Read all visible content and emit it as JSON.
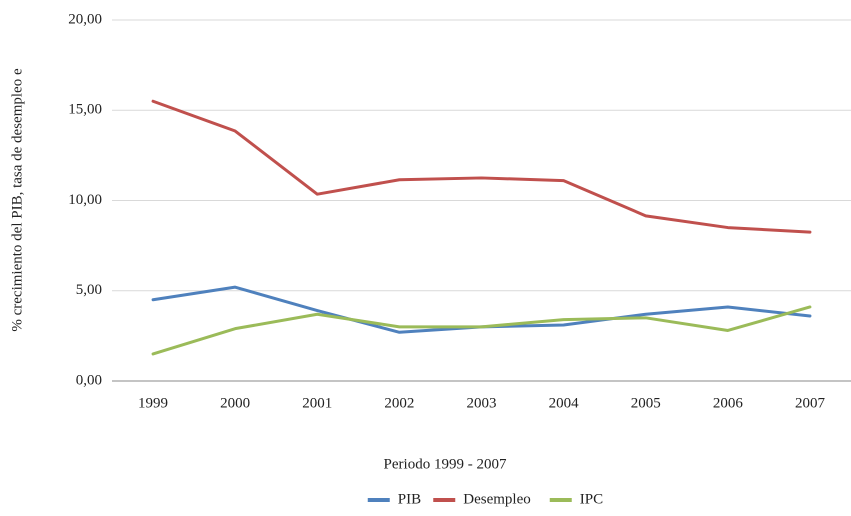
{
  "chart_data": {
    "type": "line",
    "categories": [
      "1999",
      "2000",
      "2001",
      "2002",
      "2003",
      "2004",
      "2005",
      "2006",
      "2007"
    ],
    "series": [
      {
        "name": "PIB",
        "color": "#4f81bd",
        "values": [
          4.5,
          5.2,
          3.9,
          2.7,
          3.0,
          3.1,
          3.7,
          4.1,
          3.6
        ]
      },
      {
        "name": "Desempleo",
        "color": "#c0504d",
        "values": [
          15.5,
          13.85,
          10.35,
          11.15,
          11.25,
          11.1,
          9.15,
          8.5,
          8.25
        ]
      },
      {
        "name": "IPC",
        "color": "#9bbb59",
        "values": [
          1.5,
          2.9,
          3.7,
          3.0,
          3.0,
          3.4,
          3.5,
          2.8,
          4.1
        ]
      }
    ],
    "ylim": [
      0,
      20
    ],
    "yticks": [
      {
        "value": 0,
        "label": "0,00"
      },
      {
        "value": 5,
        "label": "5,00"
      },
      {
        "value": 10,
        "label": "10,00"
      },
      {
        "value": 15,
        "label": "15,00"
      },
      {
        "value": 20,
        "label": "20,00"
      }
    ],
    "grid": true,
    "x_label": "Periodo 1999 - 2007",
    "y_label": "% crecimiento del PIB, tasa de desempleo e",
    "legend": "bottom"
  }
}
